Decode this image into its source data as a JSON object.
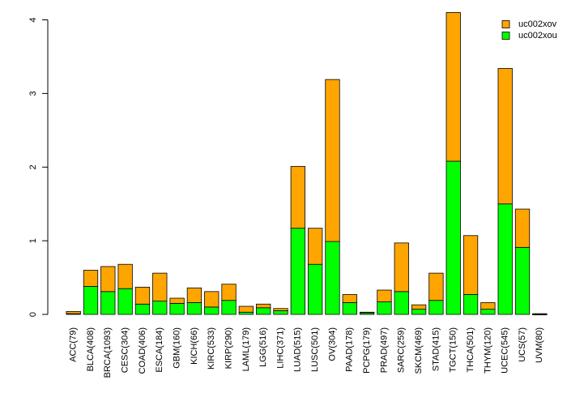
{
  "chart_data": {
    "type": "bar",
    "stacked": true,
    "title": "",
    "xlabel": "",
    "ylabel": "",
    "ylim": [
      0,
      4
    ],
    "yticks": [
      0,
      1,
      2,
      3,
      4
    ],
    "grid": false,
    "legend_position": "top-right",
    "categories": [
      "ACC(79)",
      "BLCA(408)",
      "BRCA(1093)",
      "CESC(304)",
      "COAD(406)",
      "ESCA(184)",
      "GBM(160)",
      "KICH(66)",
      "KIRC(533)",
      "KIRP(290)",
      "LAML(179)",
      "LGG(516)",
      "LIHC(371)",
      "LUAD(515)",
      "LUSC(501)",
      "OV(304)",
      "PAAD(178)",
      "PCPG(179)",
      "PRAD(497)",
      "SARC(259)",
      "SKCM(469)",
      "STAD(415)",
      "TGCT(150)",
      "THCA(501)",
      "THYM(120)",
      "UCEC(545)",
      "UCS(57)",
      "UVM(80)"
    ],
    "series": [
      {
        "name": "uc002xou",
        "color": "#00ff00",
        "values": [
          0.01,
          0.38,
          0.31,
          0.35,
          0.14,
          0.18,
          0.15,
          0.16,
          0.1,
          0.19,
          0.03,
          0.09,
          0.05,
          1.17,
          0.68,
          0.99,
          0.16,
          0.02,
          0.17,
          0.31,
          0.07,
          0.19,
          2.08,
          0.27,
          0.07,
          1.5,
          0.91,
          0.0
        ]
      },
      {
        "name": "uc002xov",
        "color": "#ffa500",
        "values": [
          0.03,
          0.22,
          0.34,
          0.33,
          0.23,
          0.38,
          0.07,
          0.2,
          0.21,
          0.22,
          0.08,
          0.05,
          0.03,
          0.84,
          0.49,
          2.2,
          0.11,
          0.01,
          0.16,
          0.66,
          0.06,
          0.37,
          2.02,
          0.8,
          0.09,
          1.84,
          0.52,
          0.01
        ]
      }
    ],
    "legend_order": [
      "uc002xov",
      "uc002xou"
    ]
  }
}
